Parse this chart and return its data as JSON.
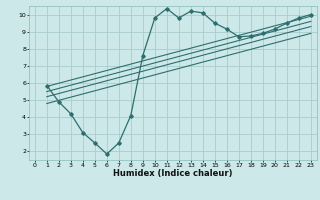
{
  "title": "",
  "xlabel": "Humidex (Indice chaleur)",
  "bg_color": "#cce8e8",
  "grid_color": "#aacccc",
  "line_color": "#2e6e6e",
  "xlim": [
    -0.5,
    23.5
  ],
  "ylim": [
    1.5,
    10.5
  ],
  "xticks": [
    0,
    1,
    2,
    3,
    4,
    5,
    6,
    7,
    8,
    9,
    10,
    11,
    12,
    13,
    14,
    15,
    16,
    17,
    18,
    19,
    20,
    21,
    22,
    23
  ],
  "yticks": [
    2,
    3,
    4,
    5,
    6,
    7,
    8,
    9,
    10
  ],
  "noisy_line": {
    "x": [
      1,
      2,
      3,
      4,
      5,
      6,
      7,
      8,
      9,
      10,
      11,
      12,
      13,
      14,
      15,
      16,
      17,
      18,
      19,
      20,
      21,
      22,
      23
    ],
    "y": [
      5.85,
      4.9,
      4.2,
      3.1,
      2.5,
      1.85,
      2.5,
      4.1,
      7.6,
      9.8,
      10.35,
      9.8,
      10.2,
      10.1,
      9.5,
      9.15,
      8.7,
      8.75,
      8.9,
      9.15,
      9.5,
      9.8,
      10.0
    ]
  },
  "smooth_lines": [
    {
      "x": [
        1,
        23
      ],
      "y": [
        5.8,
        9.9
      ]
    },
    {
      "x": [
        1,
        23
      ],
      "y": [
        5.5,
        9.6
      ]
    },
    {
      "x": [
        1,
        23
      ],
      "y": [
        5.2,
        9.3
      ]
    },
    {
      "x": [
        1,
        23
      ],
      "y": [
        4.8,
        8.9
      ]
    }
  ]
}
